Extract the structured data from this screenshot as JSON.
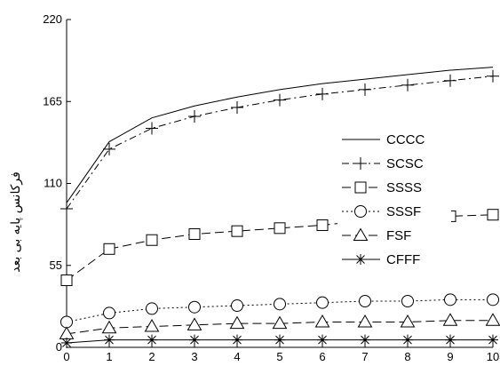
{
  "chart_data": {
    "type": "line",
    "title": "",
    "xlabel": "",
    "ylabel": "فرکانس پایه بی بعد",
    "xlim": [
      0,
      10
    ],
    "ylim": [
      0,
      220
    ],
    "x": [
      0,
      1,
      2,
      3,
      4,
      5,
      6,
      7,
      8,
      9,
      10
    ],
    "x_ticks": [
      "0",
      "1",
      "2",
      "3",
      "4",
      "5",
      "6",
      "7",
      "8",
      "9",
      "10"
    ],
    "y_ticks": [
      "0",
      "55",
      "110",
      "165",
      "220"
    ],
    "y_tick_values": [
      0,
      55,
      110,
      165,
      220
    ],
    "grid": false,
    "legend_position": "right",
    "series": [
      {
        "name": "CCCC",
        "line": "solid",
        "marker": "none",
        "values": [
          97,
          138,
          154,
          162,
          168,
          173,
          177,
          180,
          183,
          186,
          188
        ]
      },
      {
        "name": "SCSC",
        "line": "dashdot",
        "marker": "plus",
        "values": [
          93,
          133,
          147,
          155,
          161,
          166,
          170,
          173,
          176,
          179,
          182
        ]
      },
      {
        "name": "SSSS",
        "line": "dashed",
        "marker": "square",
        "values": [
          45,
          66,
          72,
          76,
          78,
          80,
          82,
          85,
          87,
          88,
          89
        ]
      },
      {
        "name": "SSSF",
        "line": "dotted",
        "marker": "circle",
        "values": [
          17,
          23,
          26,
          27,
          28,
          29,
          30,
          31,
          31,
          32,
          32
        ]
      },
      {
        "name": "FSF",
        "line": "dashed",
        "marker": "triangle",
        "values": [
          9,
          13,
          14,
          15,
          16,
          16,
          17,
          17,
          17,
          18,
          18
        ]
      },
      {
        "name": "CFFF",
        "line": "solid",
        "marker": "asterisk",
        "values": [
          3,
          5,
          5,
          5,
          5,
          5,
          5,
          5,
          5,
          5,
          5
        ]
      }
    ]
  }
}
